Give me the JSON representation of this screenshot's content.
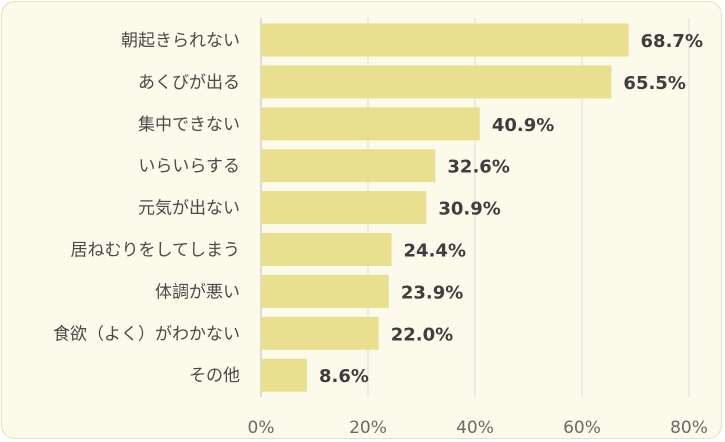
{
  "chart_data": {
    "type": "bar",
    "orientation": "horizontal",
    "categories": [
      "朝起きられない",
      "あくびが出る",
      "集中できない",
      "いらいらする",
      "元気が出ない",
      "居ねむりをしてしまう",
      "体調が悪い",
      "食欲（よく）がわかない",
      "その他"
    ],
    "values": [
      68.7,
      65.5,
      40.9,
      32.6,
      30.9,
      24.4,
      23.9,
      22.0,
      8.6
    ],
    "value_labels": [
      "68.7%",
      "65.5%",
      "40.9%",
      "32.6%",
      "30.9%",
      "24.4%",
      "23.9%",
      "22.0%",
      "8.6%"
    ],
    "xlim": [
      0,
      80
    ],
    "xticks": [
      0,
      20,
      40,
      60,
      80
    ],
    "xtick_labels": [
      "0%",
      "20%",
      "40%",
      "60%",
      "80%"
    ],
    "title": "",
    "xlabel": "",
    "ylabel": "",
    "grid": "vertical",
    "legend": "none",
    "colors": {
      "bar": "#e9e08f",
      "grid": "#dcdcdc",
      "background": "#fcfaea",
      "border": "#e6dfb8"
    }
  }
}
